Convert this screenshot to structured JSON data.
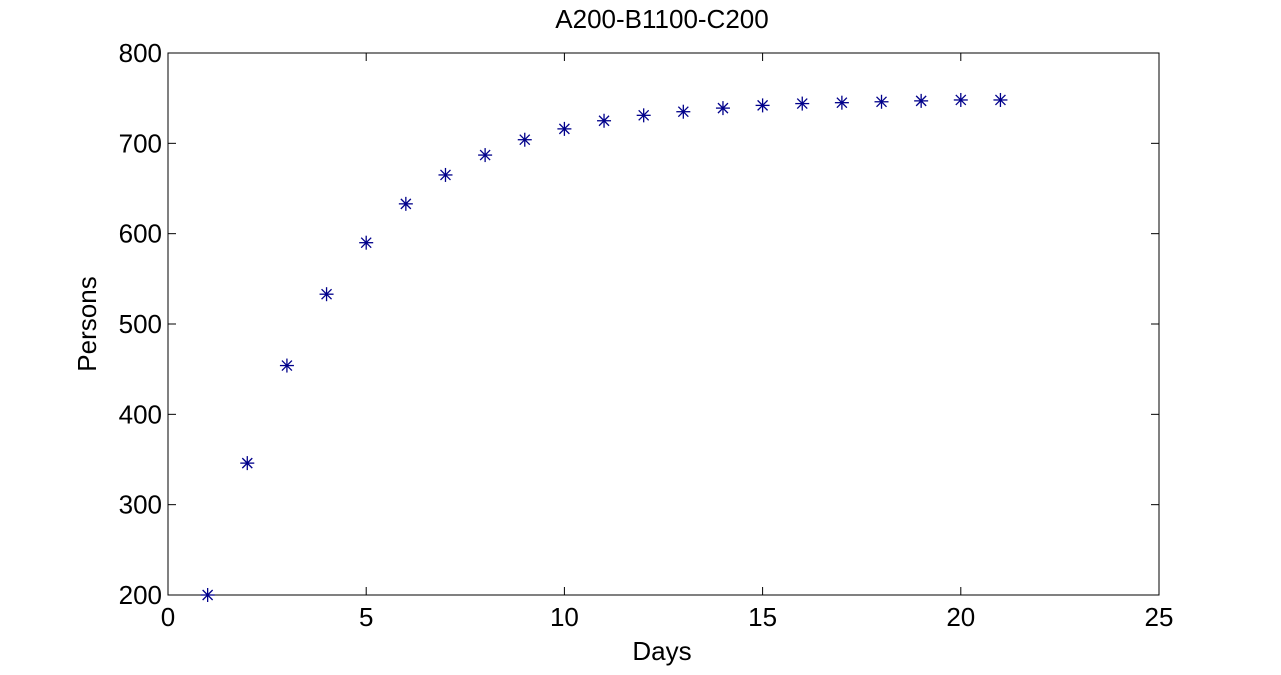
{
  "colors": {
    "background": "#ffffff",
    "axes": "#000000",
    "marker": "#00008b"
  },
  "chart_data": {
    "type": "scatter",
    "title": "A200-B1100-C200",
    "xlabel": "Days",
    "ylabel": "Persons",
    "xlim": [
      0,
      25
    ],
    "ylim": [
      200,
      800
    ],
    "xticks": [
      0,
      5,
      10,
      15,
      20,
      25
    ],
    "yticks": [
      200,
      300,
      400,
      500,
      600,
      700,
      800
    ],
    "grid": false,
    "legend": "none",
    "marker": "asterisk",
    "series": [
      {
        "x": [
          1,
          2,
          3,
          4,
          5,
          6,
          7,
          8,
          9,
          10,
          11,
          12,
          13,
          14,
          15,
          16,
          17,
          18,
          19,
          20,
          21
        ],
        "y": [
          200,
          346,
          454,
          533,
          590,
          633,
          665,
          687,
          704,
          716,
          725,
          731,
          735,
          739,
          742,
          744,
          745,
          746,
          747,
          748,
          748
        ]
      }
    ]
  }
}
